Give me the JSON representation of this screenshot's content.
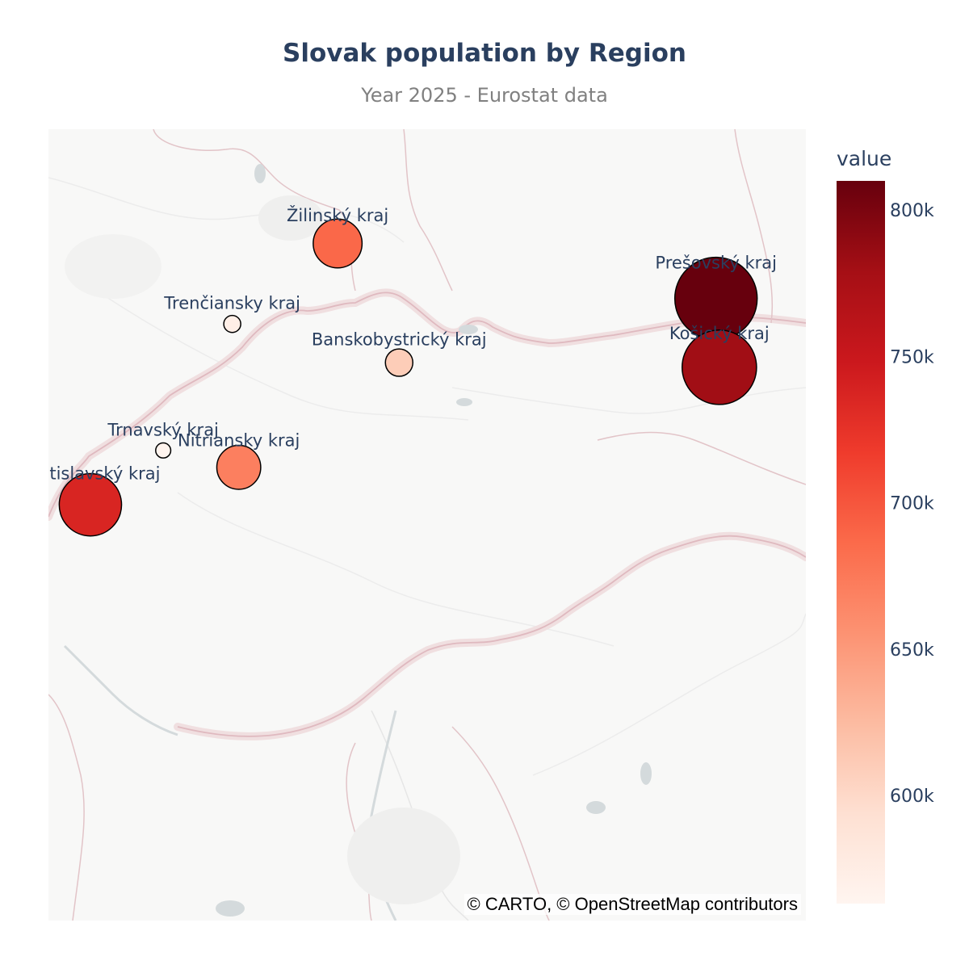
{
  "title": "Slovak population by Region",
  "subtitle": "Year 2025 - Eurostat data",
  "attribution": "© CARTO, © OpenStreetMap contributors",
  "colorbar": {
    "title": "value",
    "range": [
      563000,
      810000
    ],
    "ticks": [
      {
        "value": 600000,
        "label": "600k"
      },
      {
        "value": 650000,
        "label": "650k"
      },
      {
        "value": 700000,
        "label": "700k"
      },
      {
        "value": 750000,
        "label": "750k"
      },
      {
        "value": 800000,
        "label": "800k"
      }
    ],
    "colorscale": [
      "#fff5f0",
      "#fee0d2",
      "#fcbba1",
      "#fc9272",
      "#fb6a4a",
      "#ef3b2c",
      "#cb181d",
      "#a50f15",
      "#67000d"
    ]
  },
  "map": {
    "basemap": "carto-positron",
    "background": "#f8f8f7",
    "land_color": "#fafaf8",
    "border_color": "#e8c8cc",
    "water_color": "#d4dadc"
  },
  "regions": [
    {
      "name": "Bratislavský kraj",
      "lat": 48.155,
      "lon": 17.107,
      "value": 737000
    },
    {
      "name": "Trnavský kraj",
      "lat": 48.377,
      "lon": 17.588,
      "value": 565000
    },
    {
      "name": "Trenčiansky kraj",
      "lat": 48.894,
      "lon": 18.044,
      "value": 572000
    },
    {
      "name": "Nitriansky kraj",
      "lat": 48.308,
      "lon": 18.087,
      "value": 670000
    },
    {
      "name": "Žilinský kraj",
      "lat": 49.223,
      "lon": 18.74,
      "value": 688000
    },
    {
      "name": "Banskobystrický kraj",
      "lat": 48.736,
      "lon": 19.146,
      "value": 610000
    },
    {
      "name": "Prešovský kraj",
      "lat": 48.998,
      "lon": 21.239,
      "value": 810000
    },
    {
      "name": "Košický kraj",
      "lat": 48.717,
      "lon": 21.261,
      "value": 781000
    }
  ]
}
